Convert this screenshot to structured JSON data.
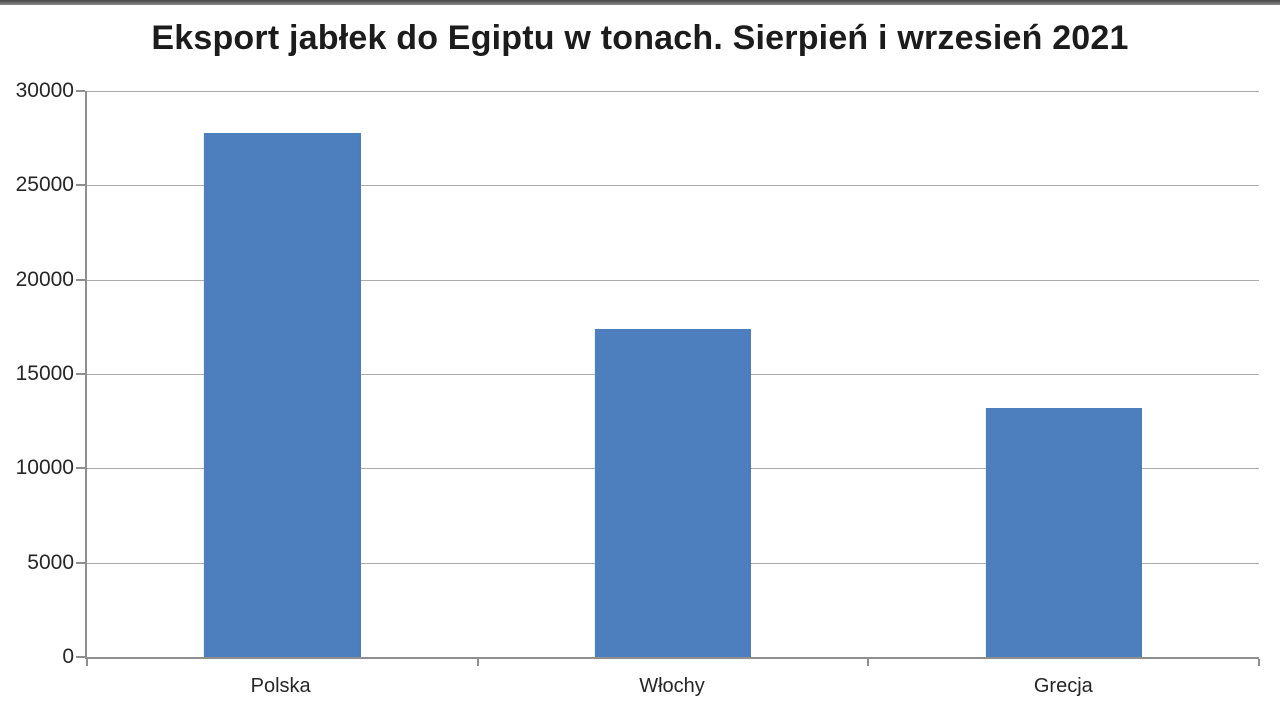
{
  "window": {
    "top_strip_color_top": "#464646",
    "top_strip_color_bottom": "#8a8a8a"
  },
  "chart_data": {
    "type": "bar",
    "title": "Eksport jabłek do Egiptu w tonach. Sierpień i wrzesień 2021",
    "categories": [
      "Polska",
      "Włochy",
      "Grecja"
    ],
    "values": [
      27800,
      17400,
      13200
    ],
    "xlabel": "",
    "ylabel": "",
    "ylim": [
      0,
      30000
    ],
    "ytick_step": 5000,
    "ytick_labels": [
      "0",
      "5000",
      "10000",
      "15000",
      "20000",
      "25000",
      "30000"
    ],
    "grid": true,
    "legend_position": "none",
    "bar_color": "#4d7ebd",
    "grid_color": "#ababab",
    "axis_color": "#8f8f8f",
    "text_color": "#262626",
    "title_color": "#1c1c1c",
    "background_color": "#ffffff"
  }
}
